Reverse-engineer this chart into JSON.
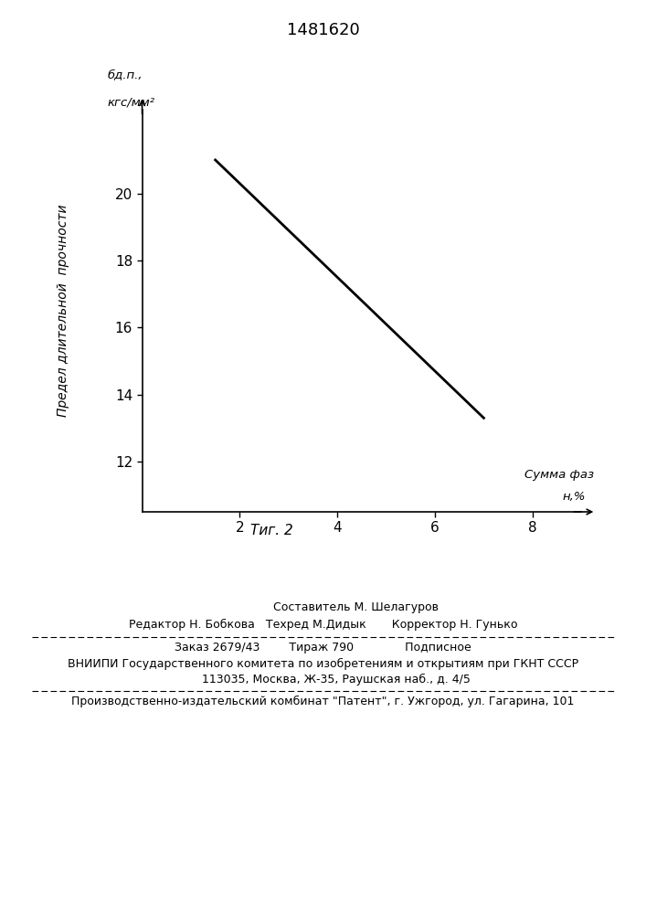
{
  "title": "1481620",
  "fig_label": "Τиг. 2",
  "line_x": [
    1.5,
    7.0
  ],
  "line_y": [
    21.0,
    13.3
  ],
  "xlim": [
    0,
    9
  ],
  "ylim": [
    10.5,
    22.5
  ],
  "xticks": [
    2,
    4,
    6,
    8
  ],
  "yticks": [
    12,
    14,
    16,
    18,
    20
  ],
  "xlabel_main": "Сумма фаз",
  "xlabel_sub": "н,%",
  "ylabel_rotated": "Предел длительной  прочности",
  "ylabel_top1": "бд.п.,",
  "ylabel_top2": "кгс/мм²",
  "line_color": "#000000",
  "line_width": 2.0,
  "bg_color": "#ffffff",
  "footer_line1": "                  Составитель М. Шелагуров",
  "footer_line2": "Редактор Н. Бобкова   Техред М.Дидык       Корректор Н. Гунько",
  "footer_line3": "Заказ 2679/43        Тираж 790              Подписное",
  "footer_line4": "ВНИИПИ Государственного комитета по изобретениям и открытиям при ГКНТ СССР",
  "footer_line5": "       113035, Москва, Ж-35, Раушская наб., д. 4/5",
  "footer_line6": "Производственно-издательский комбинат \"Патент\", г. Ужгород, ул. Гагарина, 101",
  "dash_line_color": "#000000"
}
